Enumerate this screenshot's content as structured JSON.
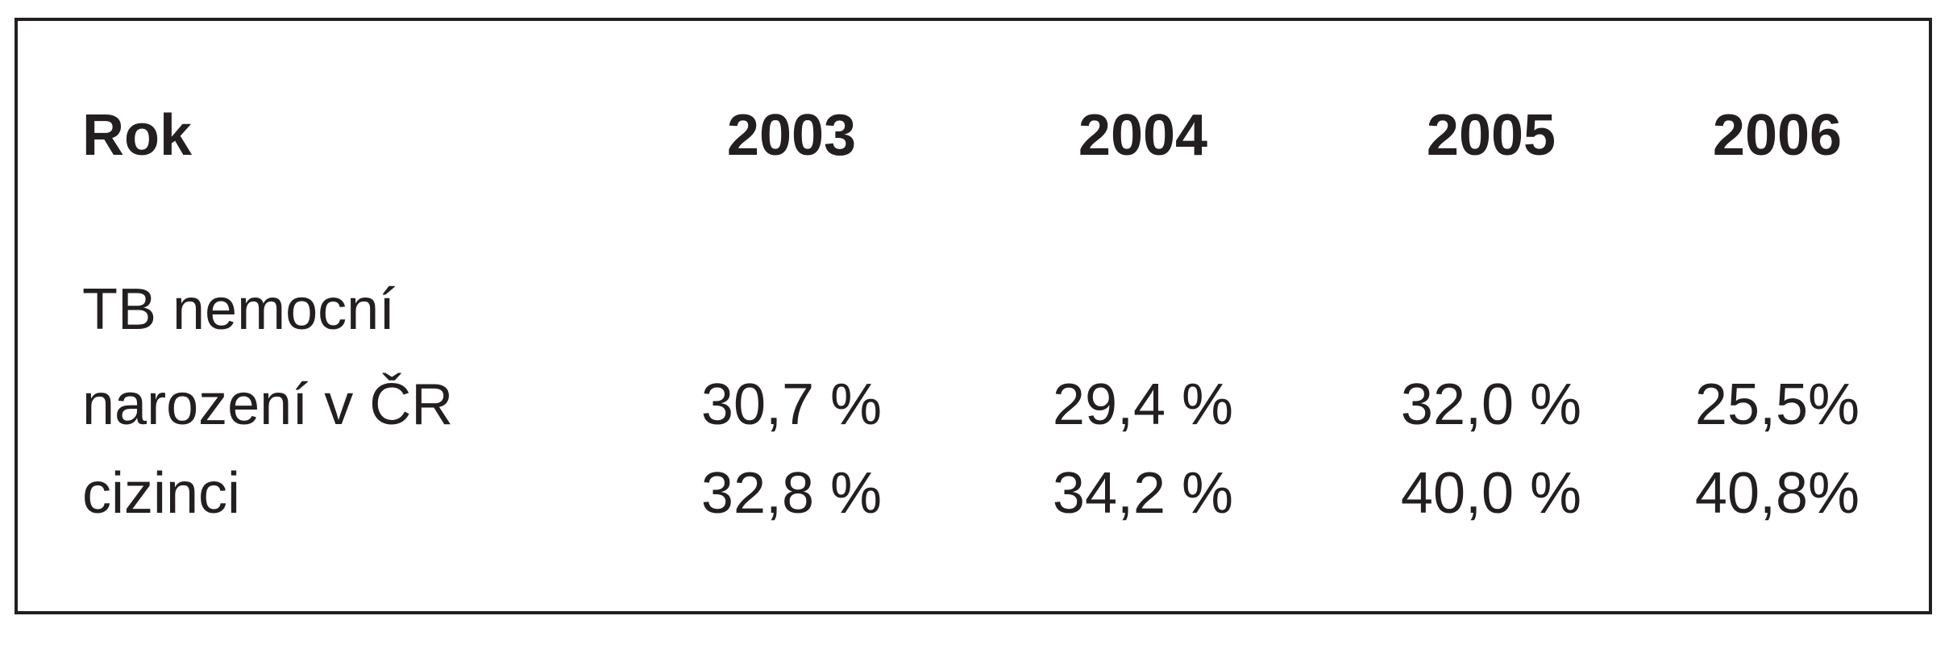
{
  "table": {
    "header": [
      "Rok",
      "2003",
      "2004",
      "2005",
      "2006"
    ],
    "section": "TB nemocní",
    "rows": [
      [
        "narození v ČR",
        "30,7 %",
        "29,4 %",
        "32,0 %",
        "25,5%"
      ],
      [
        "cizinci",
        "32,8 %",
        "34,2 %",
        "40,0 %",
        "40,8%"
      ]
    ]
  }
}
